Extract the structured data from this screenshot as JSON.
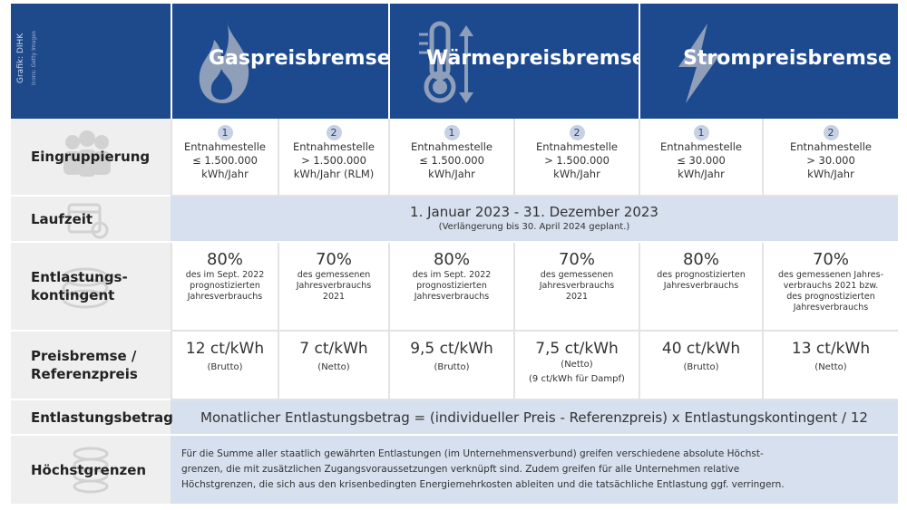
{
  "credit": {
    "line1": "Grafik: DIHK",
    "line2": "Icons: Getty Images"
  },
  "header": {
    "gas": "Gaspreisbremse",
    "heat": "Wärmepreisbremse",
    "power": "Strompreisbremse"
  },
  "rows": {
    "eingruppierung": "Eingruppierung",
    "laufzeit": "Laufzeit",
    "entlastungskontingent_1": "Entlastungs-",
    "entlastungskontingent_2": "kontingent",
    "preisbremse_1": "Preisbremse /",
    "preisbremse_2": "Referenzpreis",
    "entlastungsbetrag": "Entlastungsbetrag",
    "hoechstgrenzen": "Höchstgrenzen"
  },
  "groups": [
    {
      "num": "1",
      "line1": "Entnahmestelle",
      "line2": "≤ 1.500.000",
      "line3": "kWh/Jahr"
    },
    {
      "num": "2",
      "line1": "Entnahmestelle",
      "line2": "> 1.500.000",
      "line3": "kWh/Jahr (RLM)"
    },
    {
      "num": "1",
      "line1": "Entnahmestelle",
      "line2": "≤ 1.500.000",
      "line3": "kWh/Jahr"
    },
    {
      "num": "2",
      "line1": "Entnahmestelle",
      "line2": "> 1.500.000",
      "line3": "kWh/Jahr"
    },
    {
      "num": "1",
      "line1": "Entnahmestelle",
      "line2": "≤ 30.000",
      "line3": "kWh/Jahr"
    },
    {
      "num": "2",
      "line1": "Entnahmestelle",
      "line2": "> 30.000",
      "line3": "kWh/Jahr"
    }
  ],
  "laufzeit": {
    "main": "1. Januar 2023 - 31. Dezember 2023",
    "note": "(Verlängerung bis 30. April 2024 geplant.)"
  },
  "kontingent": [
    {
      "pct": "80%",
      "l1": "des im Sept. 2022",
      "l2": "prognostizierten",
      "l3": "Jahresverbrauchs",
      "l4": ""
    },
    {
      "pct": "70%",
      "l1": "des gemessenen",
      "l2": "Jahresverbrauchs",
      "l3": "2021",
      "l4": ""
    },
    {
      "pct": "80%",
      "l1": "des im Sept. 2022",
      "l2": "prognostizierten",
      "l3": "Jahresverbrauchs",
      "l4": ""
    },
    {
      "pct": "70%",
      "l1": "des gemessenen",
      "l2": "Jahresverbrauchs",
      "l3": "2021",
      "l4": ""
    },
    {
      "pct": "80%",
      "l1": "des prognostizierten",
      "l2": "Jahresverbrauchs",
      "l3": "",
      "l4": ""
    },
    {
      "pct": "70%",
      "l1": "des gemessenen Jahres-",
      "l2": "verbrauchs 2021 bzw.",
      "l3": "des prognostizierten",
      "l4": "Jahresverbrauchs"
    }
  ],
  "preise": [
    {
      "price": "12 ct/kWh",
      "s1": "(Brutto)",
      "s2": ""
    },
    {
      "price": "7 ct/kWh",
      "s1": "(Netto)",
      "s2": ""
    },
    {
      "price": "9,5 ct/kWh",
      "s1": "(Brutto)",
      "s2": ""
    },
    {
      "price": "7,5 ct/kWh",
      "s1": "(Netto)",
      "s2": "(9 ct/kWh für Dampf)"
    },
    {
      "price": "40 ct/kWh",
      "s1": "(Brutto)",
      "s2": ""
    },
    {
      "price": "13 ct/kWh",
      "s1": "(Netto)",
      "s2": ""
    }
  ],
  "formel": "Monatlicher Entlastungsbetrag = (individueller Preis - Referenzpreis) x Entlastungskontingent / 12",
  "hoechst": {
    "l1": "Für die Summe aller staatlich gewährten Entlastungen (im Unternehmensverbund) greifen verschiedene absolute Höchst-",
    "l2": "grenzen, die mit zusätzlichen Zugangsvoraussetzungen verknüpft sind. Zudem greifen für alle Unternehmen relative",
    "l3": "Höchstgrenzen, die sich aus den krisenbedingten Energiemehrkosten ableiten und die tatsächliche Entlastung ggf. verringern."
  },
  "colors": {
    "header": "#1d4a8f",
    "band": "#d7e0ef",
    "label_bg": "#efefef"
  }
}
